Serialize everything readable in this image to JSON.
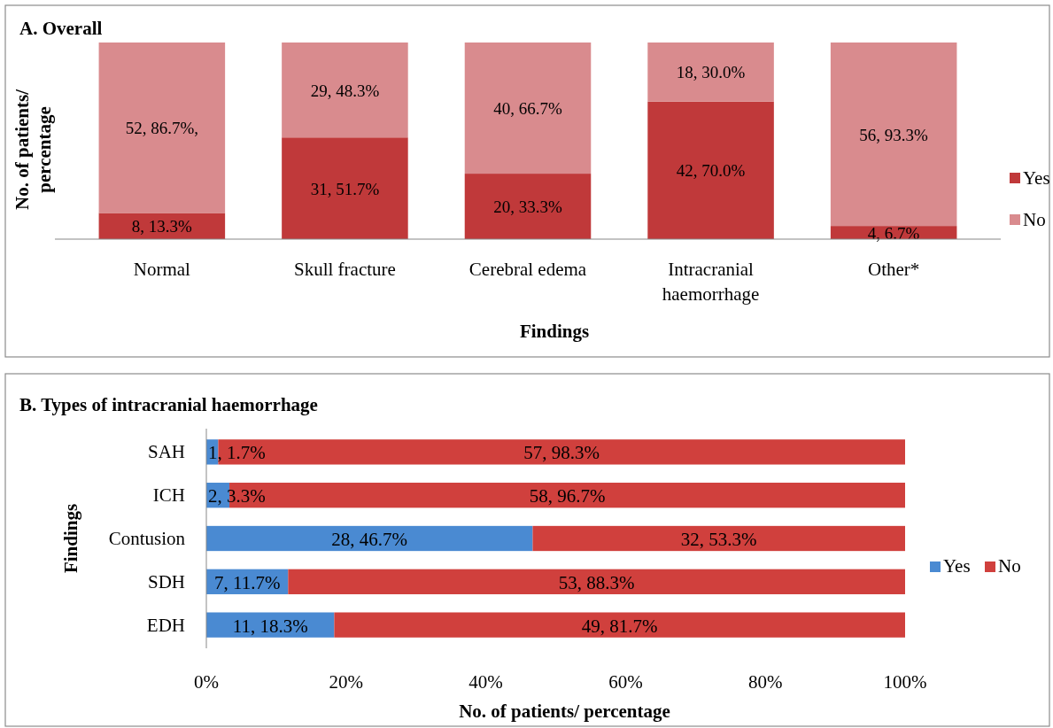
{
  "chart_data": [
    {
      "type": "bar",
      "stacked": true,
      "title": "A. Overall",
      "xlabel": "Findings",
      "ylabel": "No. of patients/ percentage",
      "categories": [
        "Normal",
        "Skull fracture",
        "Cerebral edema",
        "Intracranial haemorrhage",
        "Other*"
      ],
      "ylim": [
        0,
        100
      ],
      "tick_labels": "x",
      "legend": "right",
      "series": [
        {
          "name": "Yes",
          "color": "#c0393a",
          "values": [
            13.3,
            51.7,
            33.3,
            70.0,
            6.7
          ],
          "value_labels": [
            "8, 13.3%",
            "31, 51.7%",
            "20, 33.3%",
            "42, 70.0%",
            "4, 6.7%"
          ]
        },
        {
          "name": "No",
          "color": "#d98b8e",
          "values": [
            86.7,
            48.3,
            66.7,
            30.0,
            93.3
          ],
          "value_labels": [
            "52, 86.7%,",
            "29, 48.3%",
            "40, 66.7%",
            "18, 30.0%",
            "56, 93.3%"
          ]
        }
      ]
    },
    {
      "type": "bar",
      "stacked": true,
      "orientation": "horizontal",
      "title": "B. Types of intracranial haemorrhage",
      "xlabel": "No. of patients/ percentage",
      "ylabel": "Findings",
      "categories": [
        "SAH",
        "ICH",
        "Contusion",
        "SDH",
        "EDH"
      ],
      "xlim": [
        0,
        100
      ],
      "xticks": [
        {
          "value": 0,
          "label": "0%"
        },
        {
          "value": 20,
          "label": "20%"
        },
        {
          "value": 40,
          "label": "40%"
        },
        {
          "value": 60,
          "label": "60%"
        },
        {
          "value": 80,
          "label": "80%"
        },
        {
          "value": 100,
          "label": "100%"
        }
      ],
      "legend": "right",
      "series": [
        {
          "name": "Yes",
          "color": "#4a8ad2",
          "values": [
            1.7,
            3.3,
            46.7,
            11.7,
            18.3
          ],
          "value_labels": [
            "1, 1.7%",
            "2, 3.3%",
            "28, 46.7%",
            "7, 11.7%",
            "11, 18.3%"
          ]
        },
        {
          "name": "No",
          "color": "#d0403d",
          "values": [
            98.3,
            96.7,
            53.3,
            88.3,
            81.7
          ],
          "value_labels": [
            "57, 98.3%",
            "58, 96.7%",
            "32, 53.3%",
            "53, 88.3%",
            "49, 81.7%"
          ]
        }
      ]
    }
  ]
}
